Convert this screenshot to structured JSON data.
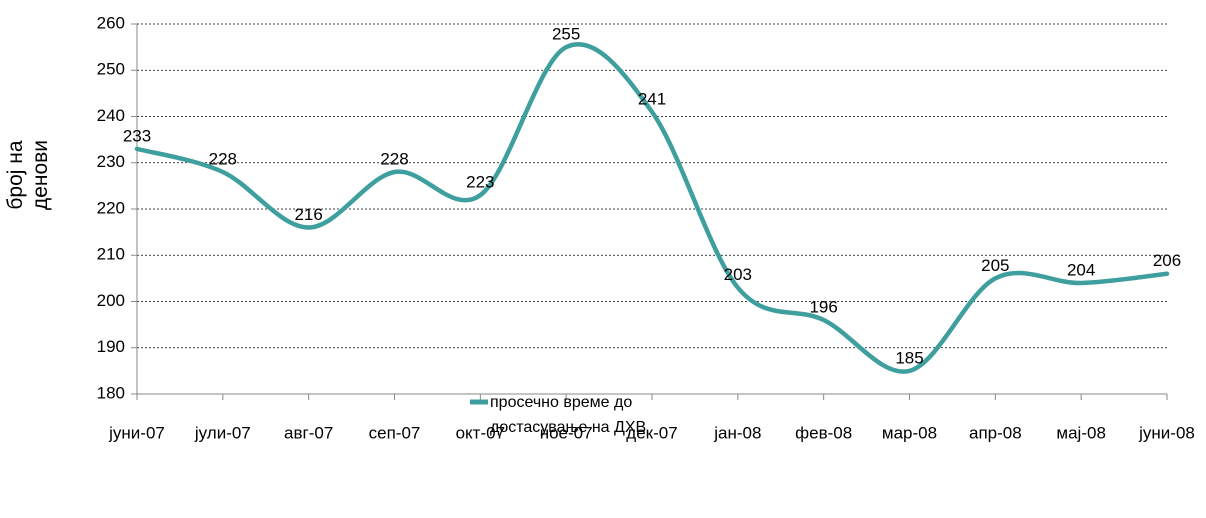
{
  "chart_data": {
    "type": "line",
    "y_label": "број на денови",
    "categories": [
      "јуни-07",
      "јули-07",
      "авг-07",
      "сеп-07",
      "окт-07",
      "ное-07",
      "дек-07",
      "јан-08",
      "фев-08",
      "мар-08",
      "апр-08",
      "мај-08",
      "јуни-08"
    ],
    "series": [
      {
        "name": "просечно време до достасување на ДХВ",
        "color": "#3f9f9f",
        "values": [
          233,
          228,
          216,
          228,
          223,
          255,
          241,
          203,
          196,
          185,
          205,
          204,
          206
        ]
      }
    ],
    "ylim": [
      180,
      260
    ],
    "yticks": [
      180,
      190,
      200,
      210,
      220,
      230,
      240,
      250,
      260
    ],
    "grid": true,
    "smooth": true,
    "legend": "bottom"
  }
}
